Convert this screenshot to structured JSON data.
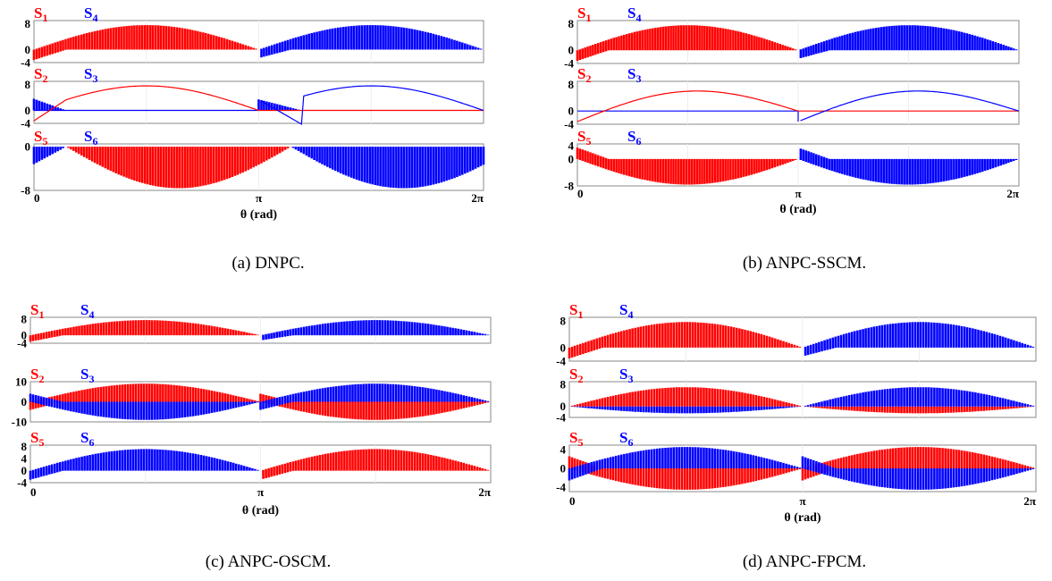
{
  "colors": {
    "red": "#ff0000",
    "blue": "#0000ff"
  },
  "chart_data": [
    {
      "type": "line",
      "caption": "(a)  DNPC.",
      "xlabel": "θ (rad)",
      "xticks": [
        "0",
        "π",
        "2π"
      ],
      "subplots": [
        {
          "labels": [
            {
              "main": "S",
              "sub": "1"
            },
            {
              "main": "S",
              "sub": "4"
            }
          ],
          "ylim": [
            -4,
            9
          ],
          "yticks": [
            "8",
            "0",
            "-4"
          ],
          "pattern": "s14"
        },
        {
          "labels": [
            {
              "main": "S",
              "sub": "2"
            },
            {
              "main": "S",
              "sub": "3"
            }
          ],
          "ylim": [
            -4,
            9
          ],
          "yticks": [
            "8",
            "0",
            "-4"
          ],
          "pattern": "s23dnpc"
        },
        {
          "labels": [
            {
              "main": "S",
              "sub": "5"
            },
            {
              "main": "S",
              "sub": "6"
            }
          ],
          "ylim": [
            -8,
            0.5
          ],
          "yticks": [
            "0",
            "-8"
          ],
          "pattern": "s56dnpc"
        }
      ]
    },
    {
      "type": "line",
      "caption": "(b)  ANPC-SSCM.",
      "xlabel": "θ (rad)",
      "xticks": [
        "0",
        "π",
        "2π"
      ],
      "subplots": [
        {
          "labels": [
            {
              "main": "S",
              "sub": "1"
            },
            {
              "main": "S",
              "sub": "4"
            }
          ],
          "ylim": [
            -4,
            9
          ],
          "yticks": [
            "8",
            "0",
            "-4"
          ],
          "pattern": "s14"
        },
        {
          "labels": [
            {
              "main": "S",
              "sub": "2"
            },
            {
              "main": "S",
              "sub": "3"
            }
          ],
          "ylim": [
            -4,
            9
          ],
          "yticks": [
            "8",
            "0",
            "-4"
          ],
          "pattern": "s23sscm"
        },
        {
          "labels": [
            {
              "main": "S",
              "sub": "5"
            },
            {
              "main": "S",
              "sub": "6"
            }
          ],
          "ylim": [
            -8,
            4.5
          ],
          "yticks": [
            "4",
            "0",
            "-8"
          ],
          "pattern": "s56sscm"
        }
      ]
    },
    {
      "type": "line",
      "caption": "(c)  ANPC-OSCM.",
      "xlabel": "θ (rad)",
      "xticks": [
        "0",
        "π",
        "2π"
      ],
      "subplots": [
        {
          "labels": [
            {
              "main": "S",
              "sub": "1"
            },
            {
              "main": "S",
              "sub": "4"
            }
          ],
          "ylim": [
            -4,
            9
          ],
          "yticks": [
            "8",
            "0",
            "-4"
          ],
          "pattern": "s14"
        },
        {
          "labels": [
            {
              "main": "S",
              "sub": "2"
            },
            {
              "main": "S",
              "sub": "3"
            }
          ],
          "ylim": [
            -10,
            10
          ],
          "yticks": [
            "10",
            "0",
            "-10"
          ],
          "pattern": "s23oscm"
        },
        {
          "labels": [
            {
              "main": "S",
              "sub": "5"
            },
            {
              "main": "S",
              "sub": "6"
            }
          ],
          "ylim": [
            -4,
            8.5
          ],
          "yticks": [
            "8",
            "4",
            "0",
            "-4"
          ],
          "pattern": "s56oscm"
        }
      ]
    },
    {
      "type": "line",
      "caption": "(d)  ANPC-FPCM.",
      "xlabel": "θ (rad)",
      "xticks": [
        "0",
        "π",
        "2π"
      ],
      "subplots": [
        {
          "labels": [
            {
              "main": "S",
              "sub": "1"
            },
            {
              "main": "S",
              "sub": "4"
            }
          ],
          "ylim": [
            -4,
            9
          ],
          "yticks": [
            "8",
            "0",
            "-4"
          ],
          "pattern": "s14"
        },
        {
          "labels": [
            {
              "main": "S",
              "sub": "2"
            },
            {
              "main": "S",
              "sub": "3"
            }
          ],
          "ylim": [
            -4,
            9
          ],
          "yticks": [
            "8",
            "0",
            "-4"
          ],
          "pattern": "s23fpcm"
        },
        {
          "labels": [
            {
              "main": "S",
              "sub": "5"
            },
            {
              "main": "S",
              "sub": "6"
            }
          ],
          "ylim": [
            -5,
            5
          ],
          "yticks": [
            "4",
            "0",
            "-4"
          ],
          "pattern": "s56fpcm"
        }
      ]
    }
  ]
}
